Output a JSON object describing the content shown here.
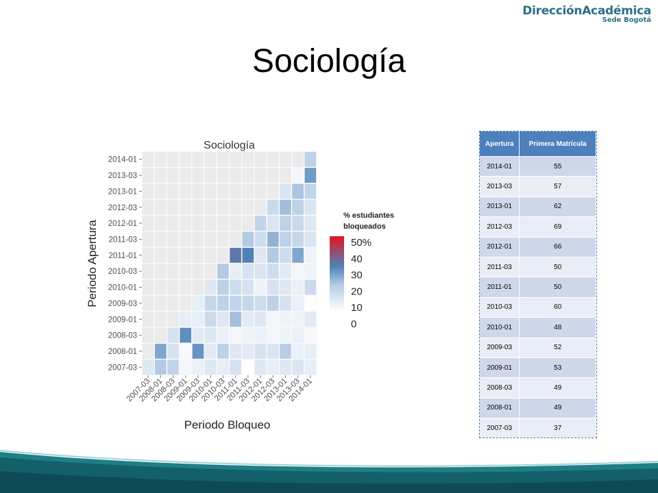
{
  "logo": {
    "line1": "DirecciónAcadémica",
    "line2": "Sede Bogotá"
  },
  "slide_title": "Sociología",
  "table": {
    "headers": [
      "Apertura",
      "Primera Matrícula"
    ],
    "rows": [
      [
        "2014-01",
        "55"
      ],
      [
        "2013-03",
        "57"
      ],
      [
        "2013-01",
        "62"
      ],
      [
        "2012-03",
        "69"
      ],
      [
        "2012-01",
        "66"
      ],
      [
        "2011-03",
        "50"
      ],
      [
        "2011-01",
        "50"
      ],
      [
        "2010-03",
        "60"
      ],
      [
        "2010-01",
        "48"
      ],
      [
        "2009-03",
        "52"
      ],
      [
        "2009-01",
        "53"
      ],
      [
        "2008-03",
        "49"
      ],
      [
        "2008-01",
        "49"
      ],
      [
        "2007-03",
        "37"
      ]
    ]
  },
  "chart_data": {
    "type": "heatmap",
    "title": "Sociología",
    "xlabel": "Periodo Bloqueo",
    "ylabel": "Periodo Apertura",
    "x": [
      "2007-03",
      "2008-01",
      "2008-03",
      "2009-01",
      "2009-03",
      "2010-01",
      "2010-03",
      "2011-01",
      "2011-03",
      "2012-01",
      "2012-03",
      "2013-01",
      "2013-03",
      "2014-01"
    ],
    "y": [
      "2007-03",
      "2008-01",
      "2008-03",
      "2009-01",
      "2009-03",
      "2010-01",
      "2010-03",
      "2011-01",
      "2011-03",
      "2012-01",
      "2012-03",
      "2013-01",
      "2013-03",
      "2014-01"
    ],
    "values": [
      [
        8,
        18,
        15,
        3,
        5,
        8,
        6,
        10,
        0,
        8,
        6,
        8,
        9,
        6
      ],
      [
        null,
        24,
        10,
        2,
        27,
        7,
        16,
        8,
        7,
        10,
        9,
        17,
        5,
        6
      ],
      [
        null,
        null,
        10,
        28,
        7,
        8,
        5,
        3,
        4,
        5,
        3,
        4,
        5,
        2
      ],
      [
        null,
        null,
        null,
        6,
        6,
        13,
        8,
        20,
        7,
        8,
        3,
        4,
        4,
        7
      ],
      [
        null,
        null,
        null,
        null,
        6,
        14,
        16,
        15,
        14,
        12,
        16,
        10,
        5,
        0
      ],
      [
        null,
        null,
        null,
        null,
        null,
        8,
        16,
        12,
        10,
        4,
        10,
        8,
        5,
        13
      ],
      [
        null,
        null,
        null,
        null,
        null,
        null,
        18,
        6,
        10,
        9,
        12,
        7,
        3,
        4
      ],
      [
        null,
        null,
        null,
        null,
        null,
        null,
        null,
        32,
        30,
        8,
        18,
        12,
        24,
        4
      ],
      [
        null,
        null,
        null,
        null,
        null,
        null,
        null,
        null,
        18,
        12,
        22,
        16,
        14,
        9
      ],
      [
        null,
        null,
        null,
        null,
        null,
        null,
        null,
        null,
        null,
        15,
        9,
        16,
        13,
        8
      ],
      [
        null,
        null,
        null,
        null,
        null,
        null,
        null,
        null,
        null,
        null,
        13,
        20,
        16,
        9
      ],
      [
        null,
        null,
        null,
        null,
        null,
        null,
        null,
        null,
        null,
        null,
        null,
        9,
        19,
        15
      ],
      [
        null,
        null,
        null,
        null,
        null,
        null,
        null,
        null,
        null,
        null,
        null,
        null,
        3,
        26
      ],
      [
        null,
        null,
        null,
        null,
        null,
        null,
        null,
        null,
        null,
        null,
        null,
        null,
        null,
        16
      ]
    ],
    "legend": {
      "title": [
        "% estudiantes",
        "bloqueados"
      ],
      "labels": [
        "50%",
        "40",
        "30",
        "20",
        "10",
        "0"
      ],
      "range": [
        0,
        50
      ],
      "colors": [
        "#ffffff",
        "#b7cde5",
        "#5082b8",
        "#e3141e"
      ]
    }
  }
}
